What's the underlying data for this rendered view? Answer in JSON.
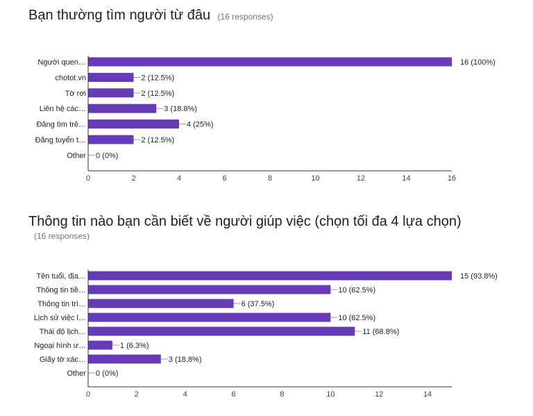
{
  "chart_data": [
    {
      "type": "bar",
      "orientation": "horizontal",
      "title": "Bạn thường tìm người từ đâu",
      "responses": "(16 responses)",
      "categories": [
        "Người quen…",
        "chotot.vn",
        "Tờ rơi",
        "Liên hệ các…",
        "Đăng tìm trê…",
        "Đăng tuyển t…",
        "Other"
      ],
      "values": [
        16,
        2,
        2,
        3,
        4,
        2,
        0
      ],
      "value_labels": [
        "16 (100%)",
        "2 (12.5%)",
        "2 (12.5%)",
        "3 (18.8%)",
        "4 (25%)",
        "2 (12.5%)",
        "0 (0%)"
      ],
      "xlim": [
        0,
        16
      ],
      "x_ticks": [
        "0",
        "2",
        "4",
        "6",
        "8",
        "10",
        "12",
        "14",
        "16"
      ],
      "bar_color": "#673ab7",
      "grid": false
    },
    {
      "type": "bar",
      "orientation": "horizontal",
      "title": "Thông tin nào bạn cần biết về người giúp việc (chọn tối đa 4 lựa chọn)",
      "responses": "(16 responses)",
      "categories": [
        "Tên tuổi, địa…",
        "Thông tin tiề…",
        "Thông tin trì…",
        "Lịch sử việc l…",
        "Thái độ lịch…",
        "Ngoại hình ư…",
        "Giấy tờ xác…",
        "Other"
      ],
      "values": [
        15,
        10,
        6,
        10,
        11,
        1,
        3,
        0
      ],
      "value_labels": [
        "15 (93.8%)",
        "10 (62.5%)",
        "6 (37.5%)",
        "10 (62.5%)",
        "11 (68.8%)",
        "1 (6.3%)",
        "3 (18.8%)",
        "0 (0%)"
      ],
      "xlim": [
        0,
        15
      ],
      "x_ticks": [
        "0",
        "2",
        "4",
        "6",
        "8",
        "10",
        "12",
        "14"
      ],
      "bar_color": "#673ab7",
      "grid": false
    }
  ]
}
